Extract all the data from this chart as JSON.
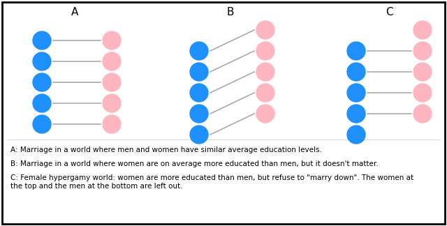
{
  "blue_color": "#1E90FF",
  "pink_color": "#FFB6C1",
  "line_color": "#AAAAAA",
  "bg_color": "#FFFFFF",
  "border_color": "#000000",
  "panel_labels": [
    "A",
    "B",
    "C"
  ],
  "figsize": [
    6.4,
    3.24
  ],
  "dpi": 100,
  "text_A": "A: Marriage in a world where men and women have similar average education levels.",
  "text_B": "B: Marriage in a world where women are on average more educated than men, but it doesn't matter.",
  "text_C": "C: Female hypergamy world: women are more educated than men, but refuse to \"marry down\". The women at\nthe top and the men at the bottom are left out."
}
